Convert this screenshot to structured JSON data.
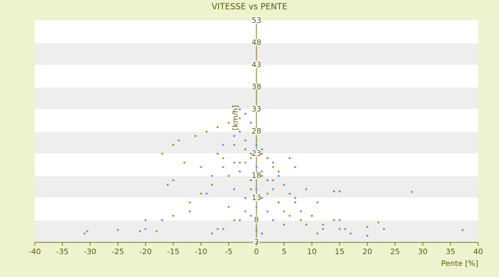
{
  "chart_data": {
    "type": "scatter",
    "title": "VITESSE vs PENTE",
    "x_label": "Pente [%]",
    "y_label": "[km/h]",
    "xlim": [
      -40,
      40
    ],
    "xticks": [
      -40,
      -35,
      -30,
      -25,
      -20,
      -15,
      -10,
      -5,
      0,
      5,
      10,
      15,
      20,
      25,
      30,
      35,
      40
    ],
    "ylim": [
      3,
      53
    ],
    "yticks": [
      3,
      8,
      13,
      18,
      23,
      28,
      33,
      38,
      43,
      48,
      53
    ],
    "grid_bands": true,
    "band_color": "#eeeeee",
    "axis_color": "#6b6b10",
    "series": [
      {
        "color": "#3a86d0",
        "x": [
          -3,
          -2,
          -1,
          -3,
          -4,
          -2,
          0,
          1,
          -1,
          2,
          3,
          -2,
          0,
          1,
          -3,
          4,
          2,
          -1,
          5,
          3,
          0,
          -4,
          6,
          1,
          -2,
          7,
          4,
          0,
          -5,
          8,
          2,
          -1,
          10,
          3,
          -3,
          12,
          5,
          0,
          -6,
          15,
          1,
          -8,
          20,
          14,
          15,
          28,
          37.2,
          -16,
          -15,
          -10,
          -8,
          -12,
          -17,
          -20,
          -31,
          -7,
          6,
          7,
          9,
          11,
          17,
          23,
          -9,
          -6,
          -4
        ],
        "values": [
          33,
          32,
          30,
          28,
          27,
          26,
          25,
          24,
          23,
          22,
          21,
          21,
          20,
          19,
          19,
          18,
          17,
          17,
          16,
          15,
          15,
          15,
          14,
          13,
          13,
          12,
          12,
          11,
          11,
          10,
          10,
          9,
          9,
          8,
          8,
          7,
          7,
          6,
          6,
          6,
          5,
          5,
          4.5,
          14.5,
          14.5,
          14.4,
          5.8,
          16,
          17,
          20,
          18,
          10,
          8,
          6,
          5,
          23,
          22,
          20,
          15,
          12,
          5,
          6,
          14,
          25,
          21
        ]
      },
      {
        "color": "#8a8a10",
        "x": [
          -3,
          -5,
          -7,
          -9,
          -11,
          -14,
          -15,
          -17,
          -13,
          -4,
          -2,
          0,
          1,
          2,
          3,
          -1,
          -3,
          -6,
          -5,
          -8,
          -10,
          -12,
          -15,
          -20,
          -21,
          -30.5,
          -25,
          -18,
          2,
          4,
          5,
          6,
          8,
          9,
          10,
          12,
          14,
          16,
          20,
          22,
          15,
          -2,
          -4,
          0,
          -7,
          3,
          1,
          -1,
          11,
          7,
          4,
          -6
        ],
        "values": [
          31,
          30,
          29,
          28,
          27,
          26,
          25,
          23,
          21,
          25,
          24,
          26,
          23,
          22,
          20,
          22,
          21,
          22,
          18,
          16,
          14,
          12,
          9,
          8,
          5.5,
          5.5,
          5.8,
          5.5,
          14,
          12,
          10,
          9,
          8,
          7,
          9,
          6,
          8,
          6,
          6.5,
          7.5,
          8,
          10,
          8,
          5.5,
          6,
          17,
          18,
          15,
          5,
          13,
          19,
          20
        ]
      }
    ]
  }
}
